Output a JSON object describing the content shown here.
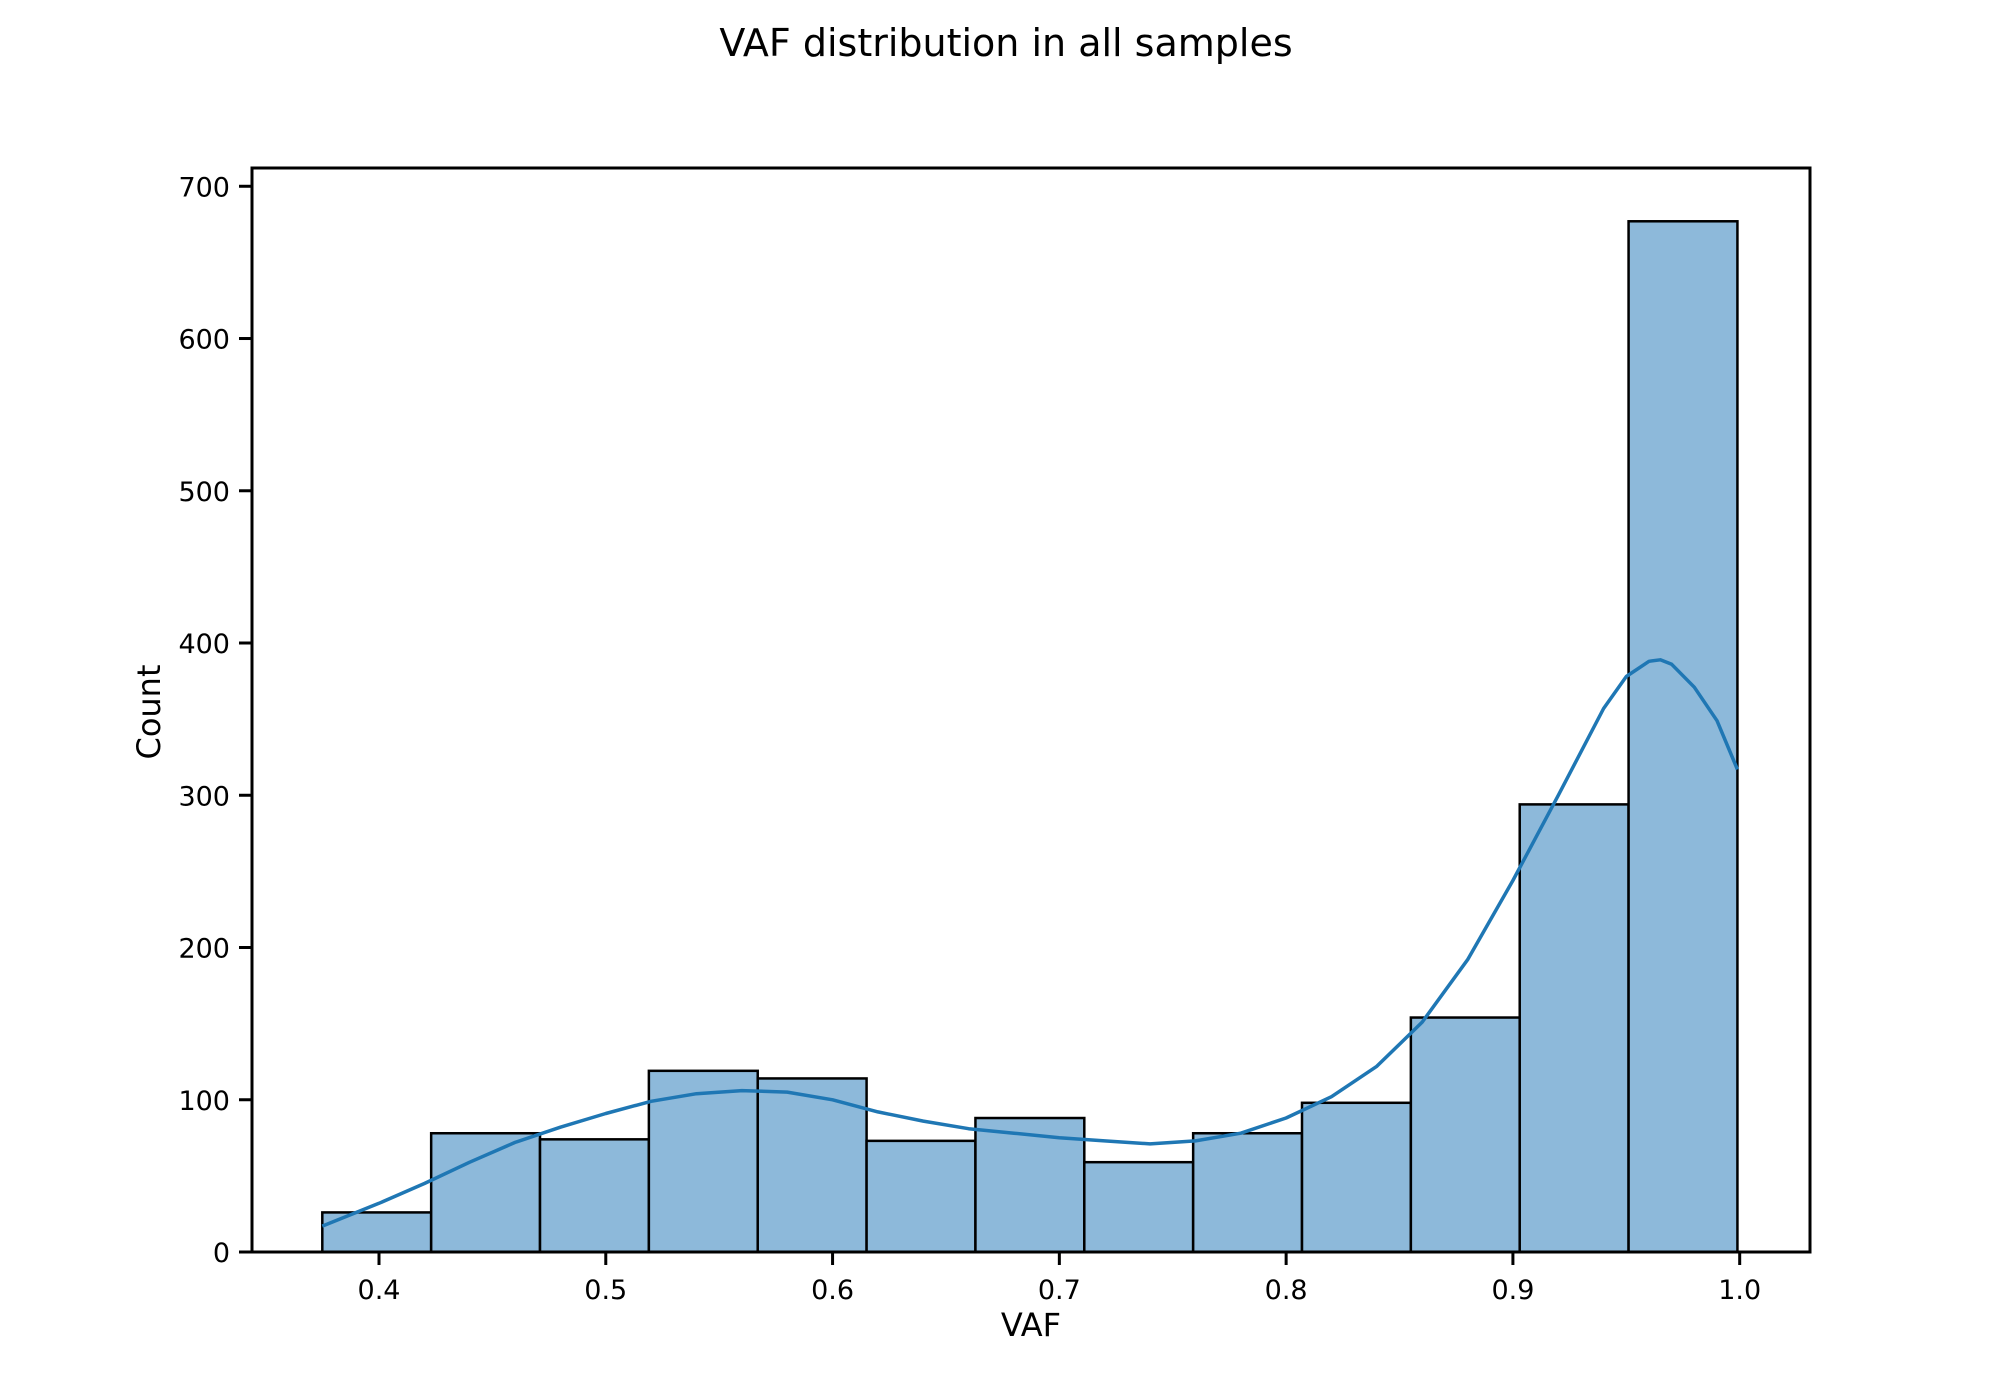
{
  "chart_data": {
    "type": "bar",
    "subtype": "histogram",
    "title": "VAF distribution in all samples",
    "xlabel": "VAF",
    "ylabel": "Count",
    "xlim": [
      0.344,
      1.031
    ],
    "ylim": [
      0,
      712
    ],
    "xticks": [
      0.4,
      0.5,
      0.6,
      0.7,
      0.8,
      0.9,
      1.0
    ],
    "xtick_labels": [
      "0.4",
      "0.5",
      "0.6",
      "0.7",
      "0.8",
      "0.9",
      "1.0"
    ],
    "yticks": [
      0,
      100,
      200,
      300,
      400,
      500,
      600,
      700
    ],
    "ytick_labels": [
      "0",
      "100",
      "200",
      "300",
      "400",
      "500",
      "600",
      "700"
    ],
    "grid": false,
    "bins": [
      {
        "start": 0.375,
        "end": 0.423,
        "count": 26
      },
      {
        "start": 0.423,
        "end": 0.471,
        "count": 78
      },
      {
        "start": 0.471,
        "end": 0.519,
        "count": 74
      },
      {
        "start": 0.519,
        "end": 0.567,
        "count": 119
      },
      {
        "start": 0.567,
        "end": 0.615,
        "count": 114
      },
      {
        "start": 0.615,
        "end": 0.663,
        "count": 73
      },
      {
        "start": 0.663,
        "end": 0.711,
        "count": 88
      },
      {
        "start": 0.711,
        "end": 0.759,
        "count": 59
      },
      {
        "start": 0.759,
        "end": 0.807,
        "count": 78
      },
      {
        "start": 0.807,
        "end": 0.855,
        "count": 98
      },
      {
        "start": 0.855,
        "end": 0.903,
        "count": 154
      },
      {
        "start": 0.903,
        "end": 0.951,
        "count": 294
      },
      {
        "start": 0.951,
        "end": 0.999,
        "count": 677
      }
    ],
    "kde": {
      "x": [
        0.375,
        0.4,
        0.42,
        0.44,
        0.46,
        0.48,
        0.5,
        0.52,
        0.54,
        0.56,
        0.58,
        0.6,
        0.62,
        0.64,
        0.66,
        0.68,
        0.7,
        0.72,
        0.74,
        0.76,
        0.78,
        0.8,
        0.82,
        0.84,
        0.86,
        0.88,
        0.9,
        0.92,
        0.94,
        0.95,
        0.96,
        0.965,
        0.97,
        0.98,
        0.99,
        0.999
      ],
      "y": [
        17,
        32,
        45,
        59,
        72,
        82,
        91,
        99,
        104,
        106,
        105,
        100,
        92,
        86,
        81,
        78,
        75,
        73,
        71,
        73,
        78,
        88,
        102,
        122,
        151,
        192,
        244,
        300,
        357,
        378,
        388,
        389,
        386,
        371,
        349,
        317
      ]
    },
    "colors": {
      "bar_fill": "#8db9da",
      "bar_edge": "#000000",
      "kde_line": "#1f77b4"
    }
  }
}
